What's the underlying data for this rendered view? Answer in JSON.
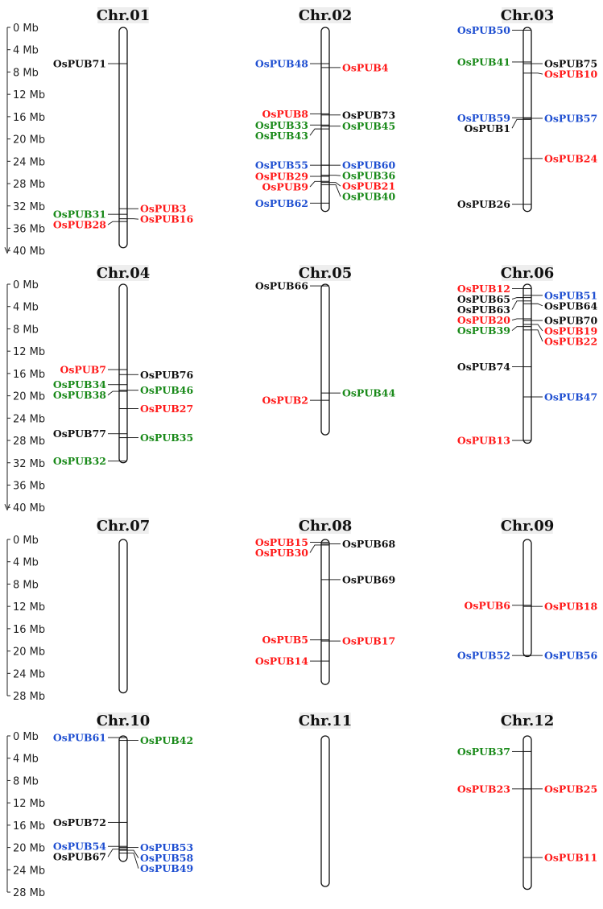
{
  "colors": {
    "red": "#ff1a1a",
    "blue": "#1f4fd1",
    "green": "#1a8a1a",
    "black": "#111111",
    "label_bg": "#eeeeee"
  },
  "scales": [
    {
      "ticks": [
        "0 Mb",
        "4 Mb",
        "8 Mb",
        "12 Mb",
        "16 Mb",
        "20 Mb",
        "24 Mb",
        "28 Mb",
        "32 Mb",
        "36 Mb",
        "40 Mb"
      ],
      "values": [
        0,
        4,
        8,
        12,
        16,
        20,
        24,
        28,
        32,
        36,
        40
      ]
    },
    {
      "ticks": [
        "0 Mb",
        "4 Mb",
        "8 Mb",
        "12 Mb",
        "16 Mb",
        "20 Mb",
        "24 Mb",
        "28 Mb",
        "32 Mb",
        "36 Mb",
        "40 Mb"
      ],
      "values": [
        0,
        4,
        8,
        12,
        16,
        20,
        24,
        28,
        32,
        36,
        40
      ]
    },
    {
      "ticks": [
        "0 Mb",
        "4 Mb",
        "8 Mb",
        "12 Mb",
        "16 Mb",
        "20 Mb",
        "24 Mb",
        "28 Mb"
      ],
      "values": [
        0,
        4,
        8,
        12,
        16,
        20,
        24,
        28
      ]
    },
    {
      "ticks": [
        "0 Mb",
        "4 Mb",
        "8 Mb",
        "12 Mb",
        "16 Mb",
        "20 Mb",
        "24 Mb",
        "28 Mb"
      ],
      "values": [
        0,
        4,
        8,
        12,
        16,
        20,
        24,
        28
      ]
    }
  ],
  "chromosomes": [
    {
      "name": "Chr.01",
      "length_mb": 39.5,
      "genes": [
        {
          "label": "OsPUB71",
          "pos_mb": 6.5,
          "color": "black",
          "side": "left"
        },
        {
          "label": "OsPUB3",
          "pos_mb": 32.5,
          "color": "red",
          "side": "right"
        },
        {
          "label": "OsPUB31",
          "pos_mb": 33.5,
          "color": "green",
          "side": "left"
        },
        {
          "label": "OsPUB16",
          "pos_mb": 34.3,
          "color": "red",
          "side": "right"
        },
        {
          "label": "OsPUB28",
          "pos_mb": 34.8,
          "color": "red",
          "side": "left"
        }
      ]
    },
    {
      "name": "Chr.02",
      "length_mb": 33,
      "genes": [
        {
          "label": "OsPUB48",
          "pos_mb": 6.5,
          "color": "blue",
          "side": "left"
        },
        {
          "label": "OsPUB4",
          "pos_mb": 7.2,
          "color": "red",
          "side": "right"
        },
        {
          "label": "OsPUB8",
          "pos_mb": 15.5,
          "color": "red",
          "side": "left"
        },
        {
          "label": "OsPUB73",
          "pos_mb": 15.7,
          "color": "black",
          "side": "right"
        },
        {
          "label": "OsPUB33",
          "pos_mb": 17.5,
          "color": "green",
          "side": "left"
        },
        {
          "label": "OsPUB45",
          "pos_mb": 17.7,
          "color": "green",
          "side": "right"
        },
        {
          "label": "OsPUB43",
          "pos_mb": 18.2,
          "color": "green",
          "side": "left"
        },
        {
          "label": "OsPUB55",
          "pos_mb": 24.7,
          "color": "blue",
          "side": "left"
        },
        {
          "label": "OsPUB60",
          "pos_mb": 24.7,
          "color": "blue",
          "side": "right"
        },
        {
          "label": "OsPUB29",
          "pos_mb": 26.7,
          "color": "red",
          "side": "left"
        },
        {
          "label": "OsPUB36",
          "pos_mb": 26.5,
          "color": "green",
          "side": "right"
        },
        {
          "label": "OsPUB9",
          "pos_mb": 27.6,
          "color": "red",
          "side": "left"
        },
        {
          "label": "OsPUB21",
          "pos_mb": 27.8,
          "color": "red",
          "side": "right"
        },
        {
          "label": "OsPUB40",
          "pos_mb": 28.2,
          "color": "green",
          "side": "right"
        },
        {
          "label": "OsPUB62",
          "pos_mb": 31.5,
          "color": "blue",
          "side": "left"
        }
      ]
    },
    {
      "name": "Chr.03",
      "length_mb": 33,
      "genes": [
        {
          "label": "OsPUB50",
          "pos_mb": 0.5,
          "color": "blue",
          "side": "left"
        },
        {
          "label": "OsPUB41",
          "pos_mb": 6.2,
          "color": "green",
          "side": "left"
        },
        {
          "label": "OsPUB75",
          "pos_mb": 6.5,
          "color": "black",
          "side": "right"
        },
        {
          "label": "OsPUB10",
          "pos_mb": 8.2,
          "color": "red",
          "side": "right"
        },
        {
          "label": "OsPUB59",
          "pos_mb": 16.2,
          "color": "blue",
          "side": "left"
        },
        {
          "label": "OsPUB57",
          "pos_mb": 16.3,
          "color": "blue",
          "side": "right"
        },
        {
          "label": "OsPUB1",
          "pos_mb": 16.5,
          "color": "black",
          "side": "left"
        },
        {
          "label": "OsPUB24",
          "pos_mb": 23.5,
          "color": "red",
          "side": "right"
        },
        {
          "label": "OsPUB26",
          "pos_mb": 31.7,
          "color": "black",
          "side": "left"
        }
      ]
    },
    {
      "name": "Chr.04",
      "length_mb": 32,
      "genes": [
        {
          "label": "OsPUB7",
          "pos_mb": 15.3,
          "color": "red",
          "side": "left"
        },
        {
          "label": "OsPUB76",
          "pos_mb": 16.2,
          "color": "black",
          "side": "right"
        },
        {
          "label": "OsPUB34",
          "pos_mb": 18.0,
          "color": "green",
          "side": "left"
        },
        {
          "label": "OsPUB38",
          "pos_mb": 19.2,
          "color": "green",
          "side": "left"
        },
        {
          "label": "OsPUB46",
          "pos_mb": 19.0,
          "color": "green",
          "side": "right"
        },
        {
          "label": "OsPUB27",
          "pos_mb": 22.3,
          "color": "red",
          "side": "right"
        },
        {
          "label": "OsPUB77",
          "pos_mb": 26.8,
          "color": "black",
          "side": "left"
        },
        {
          "label": "OsPUB35",
          "pos_mb": 27.5,
          "color": "green",
          "side": "right"
        },
        {
          "label": "OsPUB32",
          "pos_mb": 31.7,
          "color": "green",
          "side": "left"
        }
      ]
    },
    {
      "name": "Chr.05",
      "length_mb": 27,
      "genes": [
        {
          "label": "OsPUB66",
          "pos_mb": 0.3,
          "color": "black",
          "side": "left"
        },
        {
          "label": "OsPUB2",
          "pos_mb": 20.8,
          "color": "red",
          "side": "left"
        },
        {
          "label": "OsPUB44",
          "pos_mb": 19.5,
          "color": "green",
          "side": "right"
        }
      ]
    },
    {
      "name": "Chr.06",
      "length_mb": 28.5,
      "genes": [
        {
          "label": "OsPUB12",
          "pos_mb": 0.8,
          "color": "red",
          "side": "left"
        },
        {
          "label": "OsPUB51",
          "pos_mb": 2.0,
          "color": "blue",
          "side": "right"
        },
        {
          "label": "OsPUB65",
          "pos_mb": 2.4,
          "color": "black",
          "side": "left"
        },
        {
          "label": "OsPUB64",
          "pos_mb": 3.5,
          "color": "black",
          "side": "right"
        },
        {
          "label": "OsPUB63",
          "pos_mb": 3.0,
          "color": "black",
          "side": "left"
        },
        {
          "label": "OsPUB70",
          "pos_mb": 6.5,
          "color": "black",
          "side": "right"
        },
        {
          "label": "OsPUB20",
          "pos_mb": 6.2,
          "color": "red",
          "side": "left"
        },
        {
          "label": "OsPUB19",
          "pos_mb": 7.2,
          "color": "red",
          "side": "right"
        },
        {
          "label": "OsPUB39",
          "pos_mb": 7.6,
          "color": "green",
          "side": "left"
        },
        {
          "label": "OsPUB22",
          "pos_mb": 8.2,
          "color": "red",
          "side": "right"
        },
        {
          "label": "OsPUB74",
          "pos_mb": 14.8,
          "color": "black",
          "side": "left"
        },
        {
          "label": "OsPUB47",
          "pos_mb": 20.2,
          "color": "blue",
          "side": "right"
        },
        {
          "label": "OsPUB13",
          "pos_mb": 28.0,
          "color": "red",
          "side": "left"
        }
      ]
    },
    {
      "name": "Chr.07",
      "length_mb": 27.5,
      "genes": []
    },
    {
      "name": "Chr.08",
      "length_mb": 26,
      "genes": [
        {
          "label": "OsPUB15",
          "pos_mb": 0.5,
          "color": "red",
          "side": "left"
        },
        {
          "label": "OsPUB68",
          "pos_mb": 0.8,
          "color": "black",
          "side": "right"
        },
        {
          "label": "OsPUB30",
          "pos_mb": 1.0,
          "color": "red",
          "side": "left"
        },
        {
          "label": "OsPUB69",
          "pos_mb": 7.2,
          "color": "black",
          "side": "right"
        },
        {
          "label": "OsPUB5",
          "pos_mb": 18.0,
          "color": "red",
          "side": "left"
        },
        {
          "label": "OsPUB17",
          "pos_mb": 18.2,
          "color": "red",
          "side": "right"
        },
        {
          "label": "OsPUB14",
          "pos_mb": 21.8,
          "color": "red",
          "side": "left"
        }
      ]
    },
    {
      "name": "Chr.09",
      "length_mb": 21,
      "genes": [
        {
          "label": "OsPUB6",
          "pos_mb": 11.8,
          "color": "red",
          "side": "left"
        },
        {
          "label": "OsPUB18",
          "pos_mb": 12.0,
          "color": "red",
          "side": "right"
        },
        {
          "label": "OsPUB52",
          "pos_mb": 20.8,
          "color": "blue",
          "side": "left"
        },
        {
          "label": "OsPUB56",
          "pos_mb": 20.8,
          "color": "blue",
          "side": "right"
        }
      ]
    },
    {
      "name": "Chr.10",
      "length_mb": 22.5,
      "genes": [
        {
          "label": "OsPUB61",
          "pos_mb": 0.3,
          "color": "blue",
          "side": "left"
        },
        {
          "label": "OsPUB42",
          "pos_mb": 0.8,
          "color": "green",
          "side": "right"
        },
        {
          "label": "OsPUB72",
          "pos_mb": 15.5,
          "color": "black",
          "side": "left"
        },
        {
          "label": "OsPUB54",
          "pos_mb": 19.8,
          "color": "blue",
          "side": "left"
        },
        {
          "label": "OsPUB53",
          "pos_mb": 20.0,
          "color": "blue",
          "side": "right"
        },
        {
          "label": "OsPUB67",
          "pos_mb": 20.3,
          "color": "black",
          "side": "left"
        },
        {
          "label": "OsPUB58",
          "pos_mb": 20.5,
          "color": "blue",
          "side": "right"
        },
        {
          "label": "OsPUB49",
          "pos_mb": 21.0,
          "color": "blue",
          "side": "right"
        }
      ]
    },
    {
      "name": "Chr.11",
      "length_mb": 27,
      "genes": []
    },
    {
      "name": "Chr.12",
      "length_mb": 27.5,
      "genes": [
        {
          "label": "OsPUB37",
          "pos_mb": 2.8,
          "color": "green",
          "side": "left"
        },
        {
          "label": "OsPUB23",
          "pos_mb": 9.5,
          "color": "red",
          "side": "left"
        },
        {
          "label": "OsPUB25",
          "pos_mb": 9.5,
          "color": "red",
          "side": "right"
        },
        {
          "label": "OsPUB11",
          "pos_mb": 21.8,
          "color": "red",
          "side": "right"
        }
      ]
    }
  ]
}
